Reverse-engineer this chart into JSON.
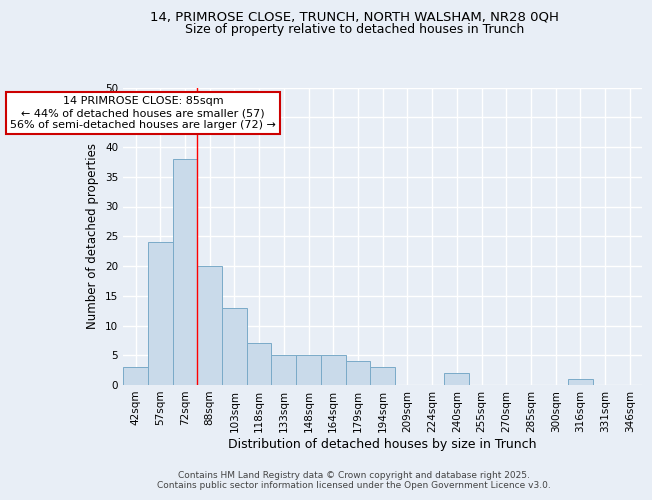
{
  "title1": "14, PRIMROSE CLOSE, TRUNCH, NORTH WALSHAM, NR28 0QH",
  "title2": "Size of property relative to detached houses in Trunch",
  "xlabel": "Distribution of detached houses by size in Trunch",
  "ylabel": "Number of detached properties",
  "bar_labels": [
    "42sqm",
    "57sqm",
    "72sqm",
    "88sqm",
    "103sqm",
    "118sqm",
    "133sqm",
    "148sqm",
    "164sqm",
    "179sqm",
    "194sqm",
    "209sqm",
    "224sqm",
    "240sqm",
    "255sqm",
    "270sqm",
    "285sqm",
    "300sqm",
    "316sqm",
    "331sqm",
    "346sqm"
  ],
  "bar_values": [
    3,
    24,
    38,
    20,
    13,
    7,
    5,
    5,
    5,
    4,
    3,
    0,
    0,
    2,
    0,
    0,
    0,
    0,
    1,
    0,
    0
  ],
  "bar_color": "#c9daea",
  "bar_edge_color": "#7aaac8",
  "ylim": [
    0,
    50
  ],
  "yticks": [
    0,
    5,
    10,
    15,
    20,
    25,
    30,
    35,
    40,
    45,
    50
  ],
  "red_line_x": 2.5,
  "annotation_text": "14 PRIMROSE CLOSE: 85sqm\n← 44% of detached houses are smaller (57)\n56% of semi-detached houses are larger (72) →",
  "annotation_box_color": "#ffffff",
  "annotation_box_edge": "#cc0000",
  "footer": "Contains HM Land Registry data © Crown copyright and database right 2025.\nContains public sector information licensed under the Open Government Licence v3.0.",
  "bg_color": "#e8eef6",
  "plot_bg_color": "#e8eef6",
  "grid_color": "#ffffff",
  "title1_fontsize": 9.5,
  "title2_fontsize": 9.0,
  "ylabel_fontsize": 8.5,
  "xlabel_fontsize": 9.0,
  "tick_fontsize": 7.5,
  "annot_fontsize": 8.0,
  "footer_fontsize": 6.5
}
